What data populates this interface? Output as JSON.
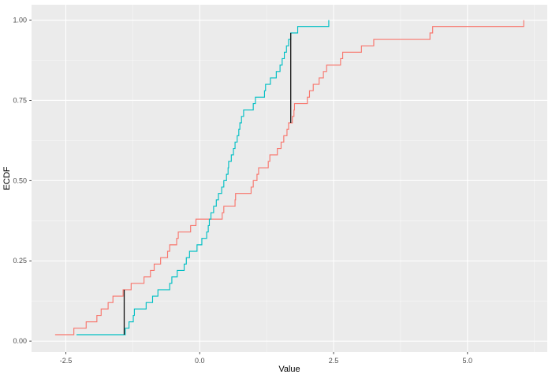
{
  "figure": {
    "kind": "ggplot-style ECDF step chart, two samples, no legend, no title"
  },
  "chart_data": {
    "type": "line",
    "subtype": "ecdf_step",
    "title": "",
    "xlabel": "Value",
    "ylabel": "ECDF",
    "xlim": [
      -3.14,
      6.49
    ],
    "ylim": [
      -0.034,
      1.048
    ],
    "x_ticks": [
      -2.5,
      0.0,
      2.5,
      5.0
    ],
    "x_tick_labels": [
      "-2.5",
      "0.0",
      "2.5",
      "5.0"
    ],
    "x_minor_ticks": [
      -1.25,
      1.25,
      3.75,
      6.25
    ],
    "y_ticks": [
      0.0,
      0.25,
      0.5,
      0.75,
      1.0
    ],
    "y_tick_labels": [
      "0.00",
      "0.25",
      "0.50",
      "0.75",
      "1.00"
    ],
    "y_minor_ticks": [
      0.125,
      0.375,
      0.625,
      0.875
    ],
    "grid": true,
    "legend": "none",
    "colors": {
      "panel_bg": "#EBEBEB",
      "grid_major": "#FFFFFF",
      "grid_minor": "#F5F5F5",
      "tick_mark": "#333333",
      "tick_text": "#4D4D4D",
      "axis_title": "#000000",
      "annotation": "#111111"
    },
    "series": [
      {
        "name": "series-red",
        "color": "#F8766D",
        "n": 50,
        "values": [
          -2.7,
          -2.35,
          -2.12,
          -1.92,
          -1.84,
          -1.71,
          -1.62,
          -1.43,
          -1.28,
          -1.04,
          -0.92,
          -0.85,
          -0.73,
          -0.6,
          -0.56,
          -0.43,
          -0.4,
          -0.17,
          -0.07,
          0.42,
          0.45,
          0.66,
          0.67,
          0.96,
          1.0,
          1.07,
          1.1,
          1.28,
          1.31,
          1.45,
          1.52,
          1.57,
          1.63,
          1.66,
          1.73,
          1.76,
          1.77,
          2.01,
          2.05,
          2.12,
          2.23,
          2.31,
          2.37,
          2.63,
          2.67,
          3.02,
          3.25,
          4.3,
          4.35,
          6.05
        ]
      },
      {
        "name": "series-cyan",
        "color": "#00BFC4",
        "n": 50,
        "values": [
          -2.3,
          -1.39,
          -1.32,
          -1.24,
          -1.22,
          -1.0,
          -0.88,
          -0.78,
          -0.56,
          -0.52,
          -0.42,
          -0.29,
          -0.25,
          -0.19,
          -0.05,
          0.04,
          0.13,
          0.16,
          0.18,
          0.21,
          0.26,
          0.31,
          0.35,
          0.41,
          0.45,
          0.5,
          0.53,
          0.54,
          0.59,
          0.63,
          0.66,
          0.7,
          0.73,
          0.75,
          0.78,
          0.82,
          1.0,
          1.04,
          1.21,
          1.23,
          1.32,
          1.43,
          1.5,
          1.54,
          1.58,
          1.62,
          1.66,
          1.7,
          1.83,
          2.41
        ]
      }
    ],
    "annotations": [
      {
        "type": "vertical_segment",
        "x": -1.41,
        "y_from": 0.02,
        "y_to": 0.16,
        "color": "#111111"
      },
      {
        "type": "vertical_segment",
        "x": 1.7,
        "y_from": 0.68,
        "y_to": 0.96,
        "color": "#111111"
      }
    ]
  }
}
